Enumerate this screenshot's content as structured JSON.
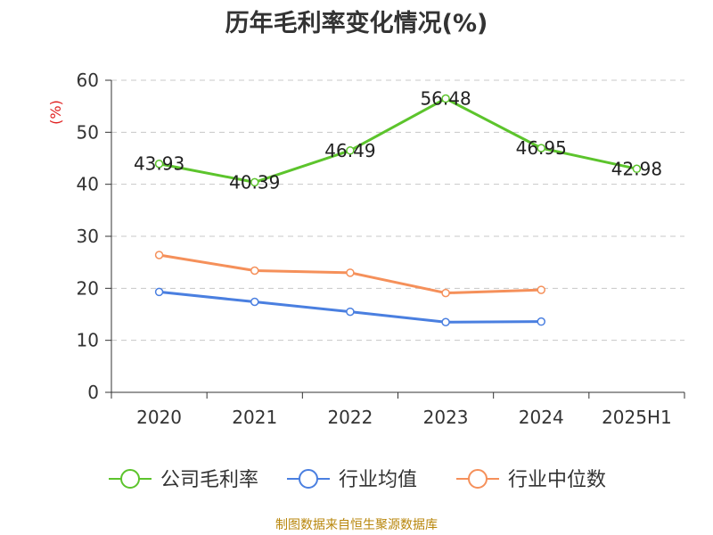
{
  "chart_data": {
    "type": "line",
    "title": "历年毛利率变化情况(%)",
    "ylabel": "(%)",
    "xlabel": "",
    "categories": [
      "2020",
      "2021",
      "2022",
      "2023",
      "2024",
      "2025H1"
    ],
    "ylim": [
      0,
      60
    ],
    "yticks": [
      0,
      10,
      20,
      30,
      40,
      50,
      60
    ],
    "grid": true,
    "legend_position": "bottom",
    "series": [
      {
        "name": "公司毛利率",
        "color": "#5cc42c",
        "values": [
          43.93,
          40.39,
          46.49,
          56.48,
          46.95,
          42.98
        ],
        "show_labels": true
      },
      {
        "name": "行业均值",
        "color": "#4a7fe0",
        "values": [
          19.3,
          17.4,
          15.5,
          13.5,
          13.6,
          null
        ],
        "show_labels": false
      },
      {
        "name": "行业中位数",
        "color": "#f5905a",
        "values": [
          26.4,
          23.4,
          23.0,
          19.1,
          19.7,
          null
        ],
        "show_labels": false
      }
    ]
  },
  "source": "制图数据来自恒生聚源数据库"
}
